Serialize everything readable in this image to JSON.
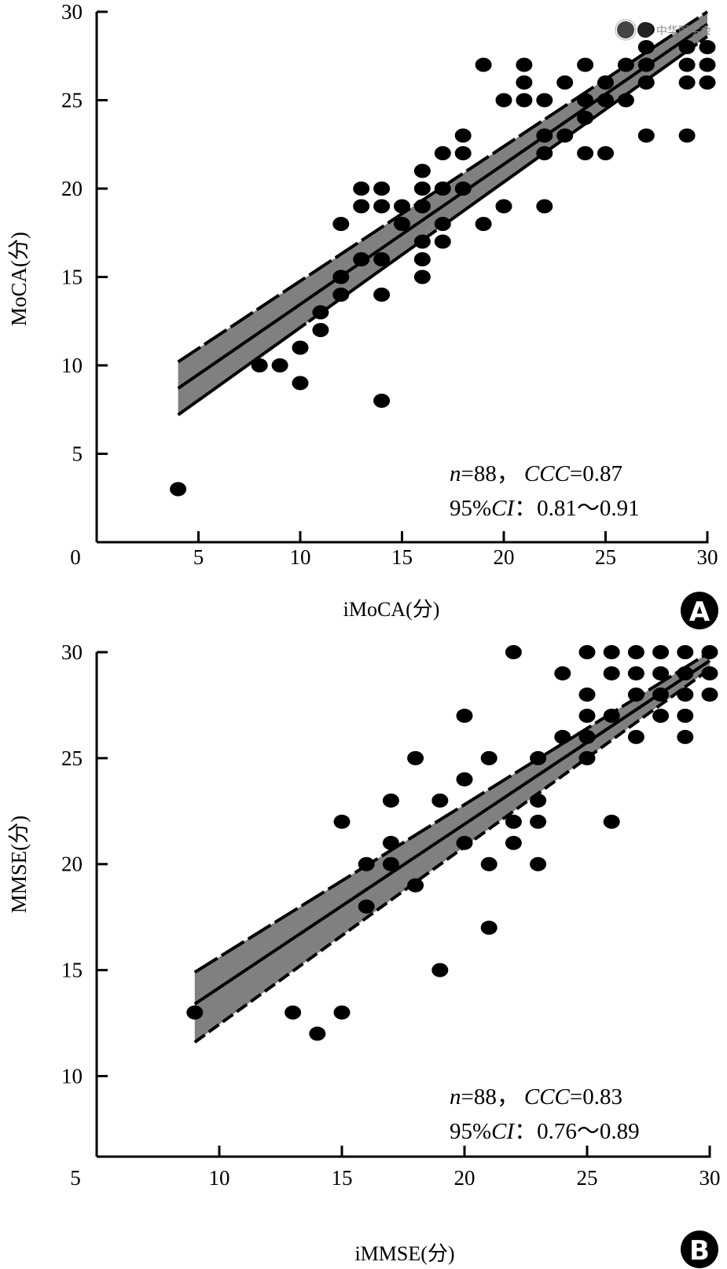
{
  "watermark": {
    "text": "中华医学会"
  },
  "chart_data": [
    {
      "type": "scatter",
      "panel": "A",
      "xlabel": "iMoCA(分)",
      "ylabel": "MoCA(分)",
      "xlim": [
        0,
        30
      ],
      "ylim": [
        0,
        30
      ],
      "x_ticks": [
        "0",
        "5",
        "10",
        "15",
        "20",
        "25",
        "30"
      ],
      "y_ticks": [
        "5",
        "10",
        "15",
        "20",
        "25",
        "30"
      ],
      "annotation": {
        "line1_n": "n",
        "line1_rest": "=88，",
        "line1_ccc": "CCC",
        "line1_value": "=0.87",
        "line2_pct": "95%",
        "line2_ci": "CI",
        "line2_rest": "：0.81～0.91"
      },
      "fit": {
        "x_range": [
          4,
          30
        ],
        "line": [
          8.7,
          29.3
        ],
        "upper": [
          10.2,
          30.0
        ],
        "lower": [
          7.2,
          28.6
        ]
      },
      "points": [
        [
          4,
          3
        ],
        [
          8,
          10
        ],
        [
          9,
          10
        ],
        [
          10,
          11
        ],
        [
          10,
          9
        ],
        [
          11,
          13
        ],
        [
          11,
          12
        ],
        [
          12,
          18
        ],
        [
          12,
          15
        ],
        [
          12,
          14
        ],
        [
          13,
          20
        ],
        [
          13,
          19
        ],
        [
          13,
          16
        ],
        [
          14,
          20
        ],
        [
          14,
          19
        ],
        [
          14,
          16
        ],
        [
          14,
          14
        ],
        [
          14,
          8
        ],
        [
          15,
          19
        ],
        [
          15,
          18
        ],
        [
          16,
          21
        ],
        [
          16,
          20
        ],
        [
          16,
          19
        ],
        [
          16,
          17
        ],
        [
          16,
          16
        ],
        [
          16,
          15
        ],
        [
          17,
          22
        ],
        [
          17,
          20
        ],
        [
          17,
          18
        ],
        [
          17,
          17
        ],
        [
          18,
          23
        ],
        [
          18,
          22
        ],
        [
          18,
          20
        ],
        [
          19,
          27
        ],
        [
          19,
          18
        ],
        [
          20,
          25
        ],
        [
          20,
          19
        ],
        [
          21,
          27
        ],
        [
          21,
          26
        ],
        [
          21,
          25
        ],
        [
          22,
          25
        ],
        [
          22,
          23
        ],
        [
          22,
          22
        ],
        [
          22,
          19
        ],
        [
          23,
          26
        ],
        [
          23,
          23
        ],
        [
          24,
          27
        ],
        [
          24,
          25
        ],
        [
          24,
          24
        ],
        [
          24,
          22
        ],
        [
          25,
          26
        ],
        [
          25,
          25
        ],
        [
          25,
          22
        ],
        [
          26,
          27
        ],
        [
          26,
          25
        ],
        [
          27,
          29
        ],
        [
          27,
          28
        ],
        [
          27,
          27
        ],
        [
          27,
          26
        ],
        [
          27,
          23
        ],
        [
          29,
          28
        ],
        [
          29,
          27
        ],
        [
          29,
          26
        ],
        [
          29,
          23
        ],
        [
          30,
          28
        ],
        [
          30,
          27
        ],
        [
          30,
          26
        ]
      ]
    },
    {
      "type": "scatter",
      "panel": "B",
      "xlabel": "iMMSE(分)",
      "ylabel": "MMSE(分)",
      "xlim": [
        5,
        30
      ],
      "ylim": [
        6.2,
        30
      ],
      "x_ticks": [
        "5",
        "10",
        "15",
        "20",
        "25",
        "30"
      ],
      "y_ticks": [
        "10",
        "15",
        "20",
        "25",
        "30"
      ],
      "annotation": {
        "line1_n": "n",
        "line1_rest": "=88，",
        "line1_ccc": "CCC",
        "line1_value": "=0.83",
        "line2_pct": "95%",
        "line2_ci": "CI",
        "line2_rest": "：0.76～0.89"
      },
      "fit": {
        "x_range": [
          9,
          30
        ],
        "line": [
          13.4,
          29.6
        ],
        "upper": [
          14.9,
          30.0
        ],
        "lower": [
          11.6,
          29.2
        ]
      },
      "points": [
        [
          9,
          13
        ],
        [
          13,
          13
        ],
        [
          14,
          12
        ],
        [
          15,
          22
        ],
        [
          15,
          13
        ],
        [
          16,
          20
        ],
        [
          16,
          18
        ],
        [
          17,
          23
        ],
        [
          17,
          21
        ],
        [
          17,
          20
        ],
        [
          18,
          25
        ],
        [
          18,
          19
        ],
        [
          19,
          23
        ],
        [
          19,
          15
        ],
        [
          20,
          27
        ],
        [
          20,
          24
        ],
        [
          20,
          21
        ],
        [
          21,
          25
        ],
        [
          21,
          20
        ],
        [
          21,
          17
        ],
        [
          22,
          30
        ],
        [
          22,
          22
        ],
        [
          22,
          21
        ],
        [
          23,
          25
        ],
        [
          23,
          23
        ],
        [
          23,
          22
        ],
        [
          23,
          20
        ],
        [
          24,
          29
        ],
        [
          24,
          26
        ],
        [
          25,
          30
        ],
        [
          25,
          28
        ],
        [
          25,
          27
        ],
        [
          25,
          26
        ],
        [
          25,
          25
        ],
        [
          26,
          30
        ],
        [
          26,
          29
        ],
        [
          26,
          27
        ],
        [
          26,
          22
        ],
        [
          27,
          30
        ],
        [
          27,
          29
        ],
        [
          27,
          28
        ],
        [
          27,
          26
        ],
        [
          28,
          30
        ],
        [
          28,
          29
        ],
        [
          28,
          28
        ],
        [
          28,
          27
        ],
        [
          29,
          30
        ],
        [
          29,
          29
        ],
        [
          29,
          28
        ],
        [
          29,
          27
        ],
        [
          29,
          26
        ],
        [
          30,
          30
        ],
        [
          30,
          29
        ],
        [
          30,
          28
        ]
      ]
    }
  ],
  "colors": {
    "band": "#808080",
    "ink": "#000000"
  }
}
